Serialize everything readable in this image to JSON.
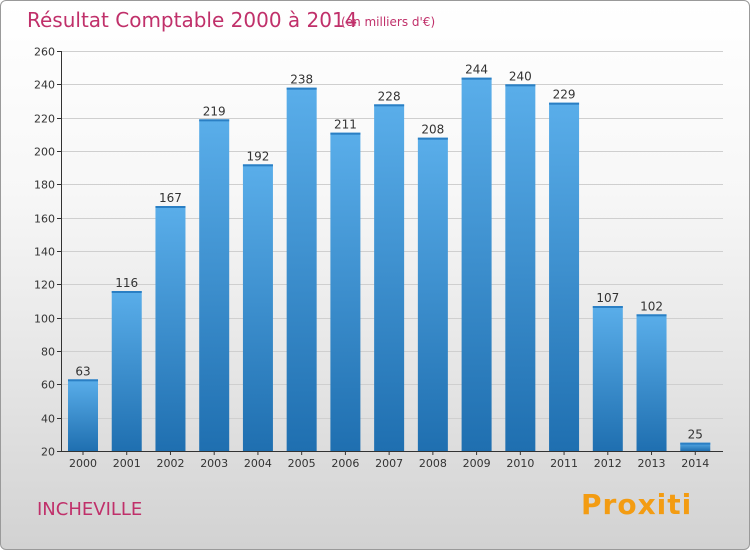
{
  "chart_data": {
    "type": "bar",
    "title": "Résultat Comptable 2000 à 2014",
    "subtitle": "(en milliers d'€)",
    "categories": [
      "2000",
      "2001",
      "2002",
      "2003",
      "2004",
      "2005",
      "2006",
      "2007",
      "2008",
      "2009",
      "2010",
      "2011",
      "2012",
      "2013",
      "2014"
    ],
    "values": [
      63,
      116,
      167,
      219,
      192,
      238,
      211,
      228,
      208,
      244,
      240,
      229,
      107,
      102,
      25
    ],
    "yticks": [
      20,
      40,
      60,
      80,
      100,
      120,
      140,
      160,
      180,
      200,
      220,
      240,
      260
    ],
    "ylim": [
      20,
      260
    ],
    "xlabel": "",
    "ylabel": "",
    "grid": true,
    "commune": "INCHEVILLE",
    "logo": "Proxiti",
    "colors": {
      "title": "#c0306a",
      "bar_top": "#5aaeea",
      "bar_bottom": "#1f6fb0",
      "grid": "#cfcfcf",
      "axis": "#333333",
      "text": "#333333"
    }
  }
}
